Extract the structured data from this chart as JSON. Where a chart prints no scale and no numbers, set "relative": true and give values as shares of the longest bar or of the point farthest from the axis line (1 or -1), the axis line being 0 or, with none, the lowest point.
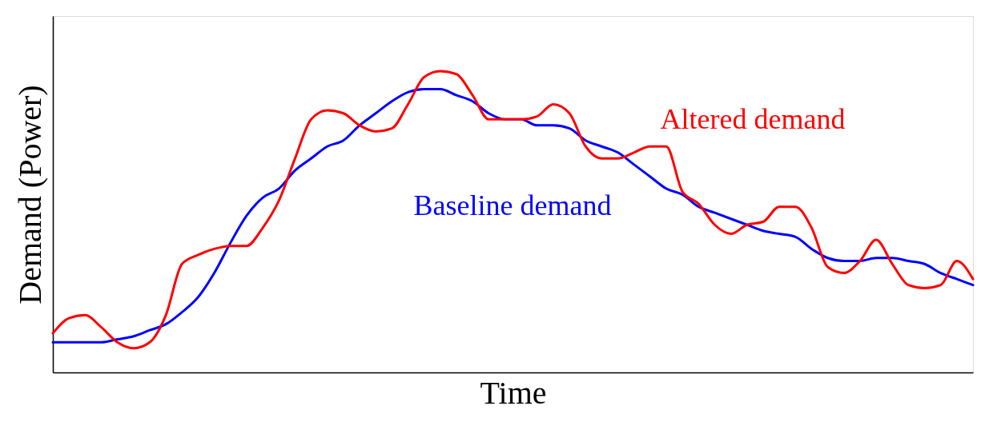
{
  "chart_data": {
    "type": "line",
    "relative": true,
    "xlabel": "Time",
    "ylabel": "Demand (Power)",
    "tick_labels": false,
    "line_style": "solid",
    "categories": [
      null,
      null,
      null,
      null,
      null,
      null,
      null,
      null,
      null,
      null,
      null,
      null,
      null,
      null,
      null,
      null,
      null,
      null,
      null,
      null,
      null,
      null,
      null,
      null,
      null,
      null,
      null,
      null,
      null,
      null,
      null,
      null,
      null,
      null,
      null,
      null,
      null,
      null,
      null,
      null,
      null,
      null,
      null,
      null,
      null,
      null,
      null,
      null,
      null,
      null,
      null,
      null,
      null,
      null,
      null,
      null,
      null,
      null
    ],
    "series": [
      {
        "name": "Baseline demand",
        "color": "#0000ff",
        "values": [
          0.1,
          0.1,
          0.1,
          0.1,
          0.11,
          0.12,
          0.14,
          0.16,
          0.2,
          0.25,
          0.33,
          0.43,
          0.52,
          0.58,
          0.61,
          0.67,
          0.71,
          0.75,
          0.77,
          0.82,
          0.86,
          0.9,
          0.93,
          0.94,
          0.94,
          0.92,
          0.9,
          0.86,
          0.84,
          0.84,
          0.82,
          0.82,
          0.81,
          0.77,
          0.75,
          0.73,
          0.69,
          0.65,
          0.61,
          0.59,
          0.55,
          0.53,
          0.51,
          0.49,
          0.47,
          0.46,
          0.45,
          0.41,
          0.38,
          0.37,
          0.37,
          0.38,
          0.38,
          0.37,
          0.36,
          0.33,
          0.31,
          0.29
        ]
      },
      {
        "name": "Altered demand",
        "color": "#ff0000",
        "values": [
          0.13,
          0.18,
          0.19,
          0.15,
          0.1,
          0.08,
          0.1,
          0.19,
          0.36,
          0.39,
          0.41,
          0.42,
          0.42,
          0.48,
          0.57,
          0.71,
          0.84,
          0.87,
          0.86,
          0.82,
          0.8,
          0.81,
          0.89,
          0.98,
          1.0,
          0.99,
          0.92,
          0.84,
          0.84,
          0.84,
          0.85,
          0.89,
          0.86,
          0.75,
          0.71,
          0.71,
          0.73,
          0.75,
          0.75,
          0.6,
          0.56,
          0.49,
          0.46,
          0.49,
          0.5,
          0.55,
          0.55,
          0.48,
          0.35,
          0.33,
          0.37,
          0.44,
          0.36,
          0.29,
          0.28,
          0.29,
          0.37,
          0.31
        ]
      }
    ]
  }
}
